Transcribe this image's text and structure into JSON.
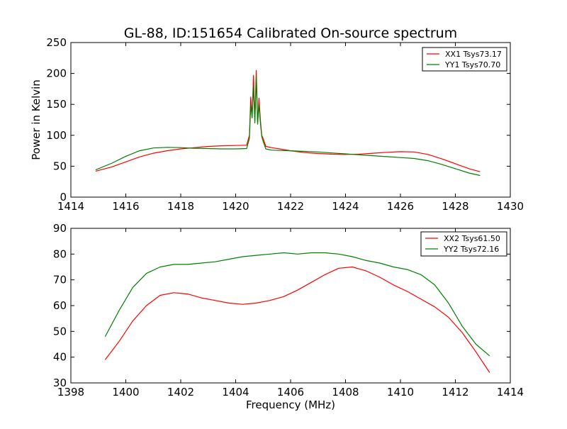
{
  "chart_data": [
    {
      "type": "line",
      "title": "GL-88, ID:151654 Calibrated On-source spectrum",
      "xlabel": "",
      "ylabel": "Power in Kelvin",
      "xlim": [
        1414,
        1430
      ],
      "ylim": [
        0,
        250
      ],
      "xticks": [
        1414,
        1416,
        1418,
        1420,
        1422,
        1424,
        1426,
        1428,
        1430
      ],
      "yticks": [
        0,
        50,
        100,
        150,
        200,
        250
      ],
      "legend_position": "top-right",
      "series": [
        {
          "name": "XX1 Tsys73.17",
          "color": "#ff0000",
          "x": [
            1414.9,
            1415.5,
            1416.0,
            1416.5,
            1417.0,
            1417.5,
            1418.0,
            1418.5,
            1419.0,
            1419.5,
            1420.0,
            1420.4,
            1420.5,
            1420.55,
            1420.6,
            1420.65,
            1420.7,
            1420.75,
            1420.8,
            1420.85,
            1420.9,
            1420.95,
            1421.0,
            1421.1,
            1421.3,
            1421.6,
            1422.0,
            1422.5,
            1423.0,
            1423.5,
            1424.0,
            1424.5,
            1425.0,
            1425.5,
            1426.0,
            1426.5,
            1427.0,
            1427.5,
            1428.0,
            1428.5,
            1428.9
          ],
          "y": [
            42,
            49,
            57,
            65,
            71,
            75,
            78,
            80,
            82,
            83,
            83.5,
            84,
            100,
            162,
            130,
            197,
            125,
            205,
            120,
            160,
            125,
            100,
            95,
            82,
            80,
            78,
            75,
            72,
            70.5,
            69.5,
            69,
            69.5,
            71,
            72.5,
            73.5,
            73,
            69,
            62,
            54,
            46,
            41
          ]
        },
        {
          "name": "YY1 Tsys70.70",
          "color": "#008000",
          "x": [
            1414.9,
            1415.5,
            1416.0,
            1416.5,
            1417.0,
            1417.5,
            1418.0,
            1418.5,
            1419.0,
            1419.5,
            1420.0,
            1420.4,
            1420.5,
            1420.55,
            1420.6,
            1420.65,
            1420.7,
            1420.75,
            1420.8,
            1420.85,
            1420.9,
            1420.95,
            1421.0,
            1421.1,
            1421.3,
            1421.6,
            1422.0,
            1422.5,
            1423.0,
            1423.5,
            1424.0,
            1424.5,
            1425.0,
            1425.5,
            1426.0,
            1426.5,
            1427.0,
            1427.5,
            1428.0,
            1428.5,
            1428.9
          ],
          "y": [
            44,
            55,
            66,
            75,
            79.5,
            80.5,
            80,
            79,
            78.5,
            78,
            78,
            78.5,
            95,
            150,
            128,
            180,
            120,
            195,
            118,
            150,
            120,
            98,
            90,
            78,
            76,
            75.5,
            75,
            74,
            73,
            71.5,
            70,
            68.5,
            67,
            65.5,
            64,
            62.5,
            59,
            53,
            46,
            39,
            35
          ]
        }
      ]
    },
    {
      "type": "line",
      "title": "",
      "xlabel": "Frequency (MHz)",
      "ylabel": "",
      "xlim": [
        1398,
        1414
      ],
      "ylim": [
        30,
        90
      ],
      "xticks": [
        1398,
        1400,
        1402,
        1404,
        1406,
        1408,
        1410,
        1412,
        1414
      ],
      "yticks": [
        30,
        40,
        50,
        60,
        70,
        80,
        90
      ],
      "legend_position": "top-right",
      "series": [
        {
          "name": "XX2 Tsys61.50",
          "color": "#ff0000",
          "x": [
            1399.25,
            1399.75,
            1400.25,
            1400.75,
            1401.25,
            1401.75,
            1402.25,
            1402.75,
            1403.25,
            1403.75,
            1404.25,
            1404.75,
            1405.25,
            1405.75,
            1406.25,
            1406.75,
            1407.25,
            1407.75,
            1408.25,
            1408.75,
            1409.25,
            1409.75,
            1410.25,
            1410.75,
            1411.25,
            1411.75,
            1412.25,
            1412.75,
            1413.25
          ],
          "y": [
            39,
            46,
            54,
            60,
            64,
            65,
            64.5,
            63,
            62,
            61,
            60.5,
            61,
            62,
            63.5,
            66,
            69,
            72,
            74.5,
            75,
            73.5,
            71,
            68,
            65.5,
            62.5,
            59.5,
            55.5,
            49.5,
            42,
            34
          ]
        },
        {
          "name": "YY2 Tsys72.16",
          "color": "#008000",
          "x": [
            1399.25,
            1399.75,
            1400.25,
            1400.75,
            1401.25,
            1401.75,
            1402.25,
            1402.75,
            1403.25,
            1403.75,
            1404.25,
            1404.75,
            1405.25,
            1405.75,
            1406.25,
            1406.75,
            1407.25,
            1407.75,
            1408.25,
            1408.75,
            1409.25,
            1409.75,
            1410.25,
            1410.75,
            1411.25,
            1411.75,
            1412.25,
            1412.75,
            1413.25
          ],
          "y": [
            48,
            58,
            67,
            72.5,
            75,
            76,
            76,
            76.5,
            77,
            78,
            79,
            79.5,
            80,
            80.5,
            80,
            80.5,
            80.5,
            80,
            79,
            77.5,
            76.5,
            75,
            74,
            72,
            68,
            61,
            52,
            45,
            40.5
          ]
        }
      ]
    }
  ]
}
